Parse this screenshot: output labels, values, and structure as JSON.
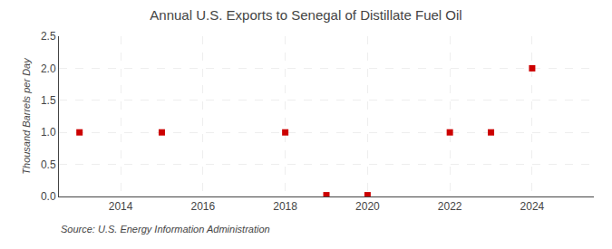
{
  "chart_data": {
    "type": "scatter",
    "title": "Annual U.S. Exports to Senegal of Distillate Fuel Oil",
    "ylabel": "Thousand Barrels per Day",
    "annotations": [
      "Source: U.S. Energy Information Administration"
    ],
    "x": [
      2013,
      2015,
      2018,
      2019,
      2020,
      2022,
      2023,
      2024
    ],
    "values": [
      1.0,
      1.0,
      1.0,
      0.02,
      0.02,
      1.0,
      1.0,
      2.0
    ],
    "color": "#cc0000",
    "marker": "square",
    "xlim": [
      2012.5,
      2025.5
    ],
    "xticks": [
      2014,
      2016,
      2018,
      2020,
      2022,
      2024
    ],
    "ylim": [
      0.0,
      2.5
    ],
    "yticks": [
      {
        "value": 0.0,
        "label": "0.0"
      },
      0.5,
      {
        "value": 1.0,
        "label": "1.0"
      },
      1.5,
      {
        "value": 2.0,
        "label": "2.0"
      },
      2.5
    ],
    "grid": true
  }
}
